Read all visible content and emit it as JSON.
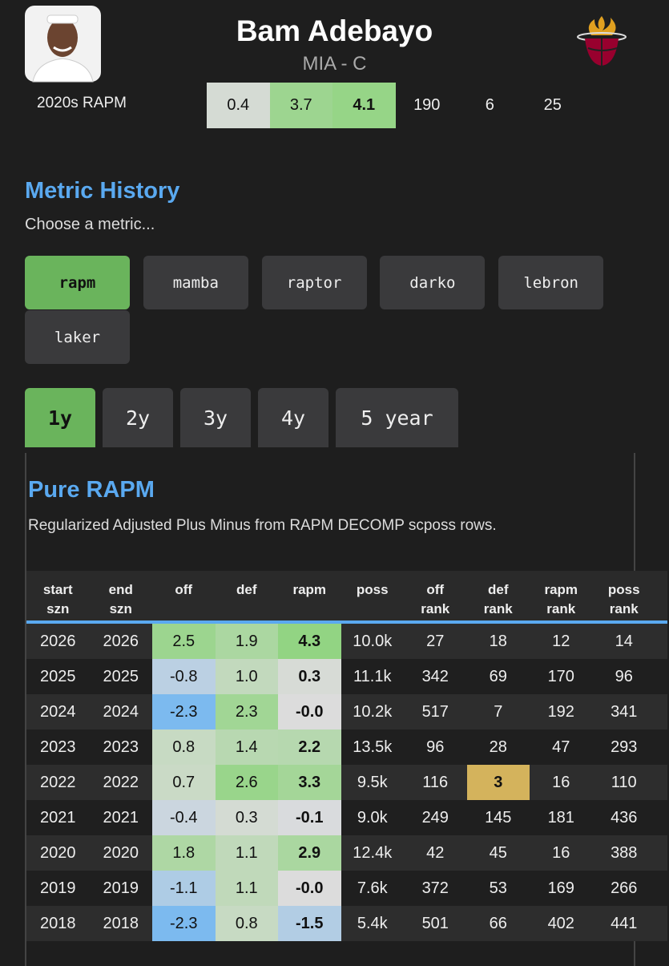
{
  "header": {
    "name": "Bam Adebayo",
    "team_position": "MIA - C",
    "summary_label": "2020s RAPM",
    "summary_values": [
      "0.4",
      "3.7",
      "4.1",
      "190",
      "6",
      "25"
    ]
  },
  "metric_history": {
    "title": "Metric History",
    "prompt": "Choose a metric...",
    "metrics": [
      "rapm",
      "mamba",
      "raptor",
      "darko",
      "lebron",
      "laker"
    ],
    "selected_metric": "rapm",
    "periods": [
      "1y",
      "2y",
      "3y",
      "4y",
      "5 year"
    ],
    "selected_period": "1y"
  },
  "table": {
    "title": "Pure RAPM",
    "description": "Regularized Adjusted Plus Minus from RAPM DECOMP scposs rows.",
    "columns": [
      [
        "start",
        "szn"
      ],
      [
        "end",
        "szn"
      ],
      [
        "off"
      ],
      [
        "def"
      ],
      [
        "rapm"
      ],
      [
        "poss"
      ],
      [
        "off",
        "rank"
      ],
      [
        "def",
        "rank"
      ],
      [
        "rapm",
        "rank"
      ],
      [
        "poss",
        "rank"
      ]
    ],
    "rows": [
      [
        "2026",
        "2026",
        "2.5",
        "1.9",
        "4.3",
        "10.0k",
        "27",
        "18",
        "12",
        "14"
      ],
      [
        "2025",
        "2025",
        "-0.8",
        "1.0",
        "0.3",
        "11.1k",
        "342",
        "69",
        "170",
        "96"
      ],
      [
        "2024",
        "2024",
        "-2.3",
        "2.3",
        "-0.0",
        "10.2k",
        "517",
        "7",
        "192",
        "341"
      ],
      [
        "2023",
        "2023",
        "0.8",
        "1.4",
        "2.2",
        "13.5k",
        "96",
        "28",
        "47",
        "293"
      ],
      [
        "2022",
        "2022",
        "0.7",
        "2.6",
        "3.3",
        "9.5k",
        "116",
        "3",
        "16",
        "110"
      ],
      [
        "2021",
        "2021",
        "-0.4",
        "0.3",
        "-0.1",
        "9.0k",
        "249",
        "145",
        "181",
        "436"
      ],
      [
        "2020",
        "2020",
        "1.8",
        "1.1",
        "2.9",
        "12.4k",
        "42",
        "45",
        "16",
        "388"
      ],
      [
        "2019",
        "2019",
        "-1.1",
        "1.1",
        "-0.0",
        "7.6k",
        "372",
        "53",
        "169",
        "266"
      ],
      [
        "2018",
        "2018",
        "-2.3",
        "0.8",
        "-1.5",
        "5.4k",
        "501",
        "66",
        "402",
        "441"
      ]
    ]
  }
}
